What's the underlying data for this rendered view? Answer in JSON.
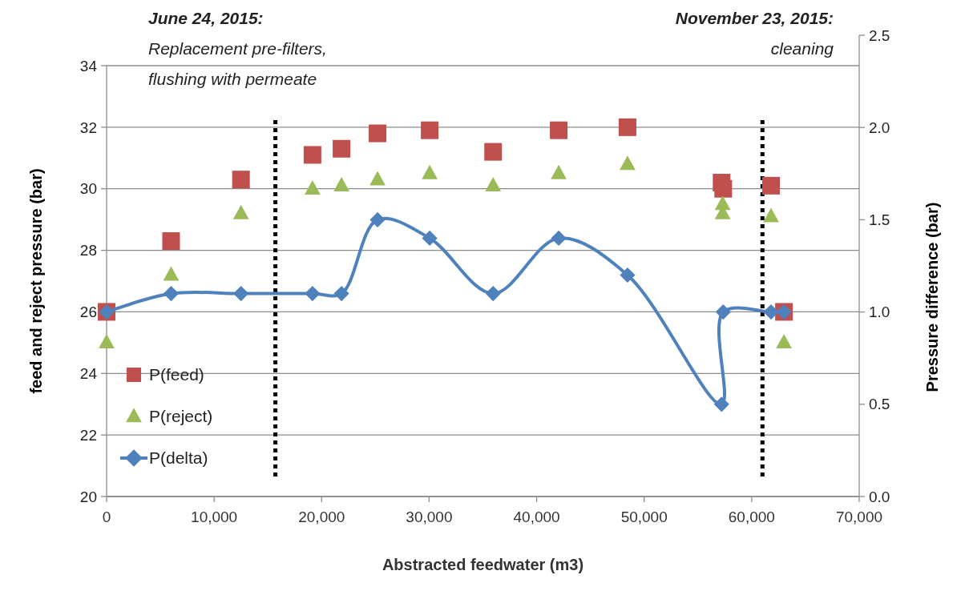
{
  "chart_data": {
    "type": "scatter",
    "xlabel": "Abstracted feedwater (m3)",
    "ylabel": "feed and reject pressure (bar)",
    "y2label": "Pressure difference (bar)",
    "xlim": [
      0,
      70000
    ],
    "xticks": [
      0,
      {
        "value": 10000,
        "label": "10,000"
      },
      {
        "value": 20000,
        "label": "20,000"
      },
      {
        "value": 30000,
        "label": "30,000"
      },
      {
        "value": 40000,
        "label": "40,000"
      },
      {
        "value": 50000,
        "label": "50,000"
      },
      {
        "value": 60000,
        "label": "60,000"
      },
      {
        "value": 70000,
        "label": "70,000"
      }
    ],
    "ylim": [
      20,
      34
    ],
    "yticks": [
      20,
      22,
      24,
      26,
      28,
      30,
      32,
      34
    ],
    "y2lim": [
      0,
      2.5
    ],
    "y2ticks": [
      {
        "value": 0,
        "label": "0.0"
      },
      {
        "value": 0.5,
        "label": "0.5"
      },
      {
        "value": 1,
        "label": "1.0"
      },
      {
        "value": 1.5,
        "label": "1.5"
      },
      {
        "value": 2,
        "label": "2.0"
      },
      2.5
    ],
    "grid": "y",
    "legend": "bottom left",
    "series": [
      {
        "name": "P(feed)",
        "marker": "square",
        "color": "#c0504d",
        "x": [
          0,
          6000,
          12500,
          19150,
          21850,
          25200,
          30050,
          35950,
          42050,
          48450,
          57200,
          57350,
          61800,
          63000
        ],
        "values": [
          26,
          28.3,
          30.3,
          31.1,
          31.3,
          31.8,
          31.9,
          31.2,
          31.9,
          32,
          30.2,
          30,
          30.1,
          26
        ]
      },
      {
        "name": "P(reject)",
        "marker": "triangle",
        "color": "#9bbb59",
        "x": [
          0,
          6000,
          12500,
          19150,
          21850,
          25200,
          30050,
          35950,
          42050,
          48450,
          57300,
          57300,
          61800,
          63000
        ],
        "values": [
          25,
          27.2,
          29.2,
          30,
          30.1,
          30.3,
          30.5,
          30.1,
          30.5,
          30.8,
          29.5,
          29.2,
          29.1,
          25
        ]
      },
      {
        "name": "P(delta)",
        "type": "line",
        "marker": "diamond",
        "axis": "y2",
        "color": "#4f81bd",
        "x": [
          0,
          6000,
          12500,
          19150,
          21850,
          25200,
          30050,
          35950,
          42050,
          48450,
          57200,
          57350,
          61800,
          63000
        ],
        "values": [
          1,
          1.1,
          1.1,
          1.1,
          1.1,
          1.5,
          1.4,
          1.1,
          1.4,
          1.2,
          0.5,
          1,
          1,
          1
        ]
      }
    ],
    "annotations": [
      "June 24, 2015:\nReplacement pre-filters,\nflushing with permeate",
      "November 23, 2015:\ncleaning"
    ],
    "ref_lines": [
      {
        "axis": "x",
        "value": 15700,
        "color": "#000000",
        "line_style": "dotted"
      },
      {
        "axis": "x",
        "value": 61000,
        "color": "#000000",
        "line_style": "dotted"
      }
    ]
  }
}
